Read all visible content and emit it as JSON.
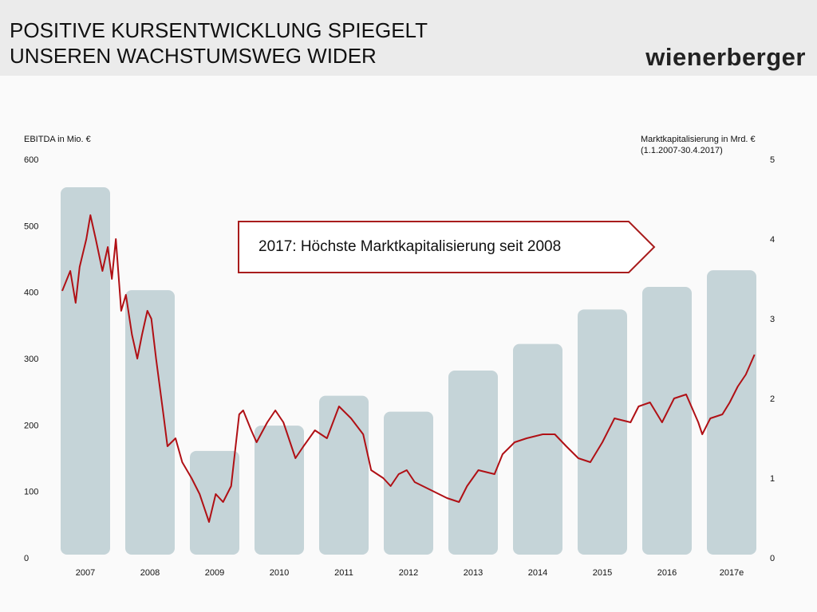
{
  "header": {
    "title_line1": "POSITIVE KURSENTWICKLUNG SPIEGELT",
    "title_line2": "UNSEREN WACHSTUMSWEG WIDER",
    "logo": "wienerberger"
  },
  "callout": "2017: Höchste Marktkapitalisierung seit 2008",
  "colors": {
    "bar": "#c5d4d8",
    "line": "#b01015",
    "callout_border": "#a81c1c"
  },
  "chart_data": {
    "type": "bar+line",
    "left_axis": {
      "label": "EBITDA in Mio. €",
      "range": [
        0,
        600
      ],
      "ticks": [
        "0",
        "100",
        "200",
        "300",
        "400",
        "500",
        "600"
      ]
    },
    "right_axis": {
      "label": "Marktkapitalisierung in Mrd. €",
      "sublabel": "(1.1.2007-30.4.2017)",
      "range": [
        0,
        5
      ],
      "ticks": [
        "0",
        "1",
        "2",
        "3",
        "4",
        "5"
      ]
    },
    "categories": [
      "2007",
      "2008",
      "2009",
      "2010",
      "2011",
      "2012",
      "2013",
      "2014",
      "2015",
      "2016",
      "2017e"
    ],
    "bars": {
      "name": "EBITDA",
      "values": [
        558,
        403,
        161,
        199,
        244,
        220,
        282,
        322,
        374,
        408,
        433
      ]
    },
    "line": {
      "name": "Marktkapitalisierung",
      "points": [
        [
          2007.0,
          3.35
        ],
        [
          2007.12,
          3.6
        ],
        [
          2007.2,
          3.2
        ],
        [
          2007.26,
          3.65
        ],
        [
          2007.36,
          4.0
        ],
        [
          2007.42,
          4.3
        ],
        [
          2007.5,
          4.0
        ],
        [
          2007.6,
          3.6
        ],
        [
          2007.68,
          3.9
        ],
        [
          2007.74,
          3.5
        ],
        [
          2007.8,
          4.0
        ],
        [
          2007.88,
          3.1
        ],
        [
          2007.95,
          3.3
        ],
        [
          2008.04,
          2.8
        ],
        [
          2008.12,
          2.5
        ],
        [
          2008.19,
          2.8
        ],
        [
          2008.27,
          3.1
        ],
        [
          2008.33,
          3.0
        ],
        [
          2008.4,
          2.5
        ],
        [
          2008.51,
          1.8
        ],
        [
          2008.57,
          1.4
        ],
        [
          2008.69,
          1.5
        ],
        [
          2008.79,
          1.2
        ],
        [
          2008.93,
          1.0
        ],
        [
          2009.05,
          0.8
        ],
        [
          2009.19,
          0.45
        ],
        [
          2009.29,
          0.8
        ],
        [
          2009.4,
          0.7
        ],
        [
          2009.52,
          0.9
        ],
        [
          2009.64,
          1.8
        ],
        [
          2009.7,
          1.85
        ],
        [
          2009.82,
          1.6
        ],
        [
          2009.9,
          1.45
        ],
        [
          2010.06,
          1.7
        ],
        [
          2010.18,
          1.85
        ],
        [
          2010.3,
          1.7
        ],
        [
          2010.48,
          1.25
        ],
        [
          2010.6,
          1.4
        ],
        [
          2010.77,
          1.6
        ],
        [
          2010.95,
          1.5
        ],
        [
          2011.13,
          1.9
        ],
        [
          2011.31,
          1.75
        ],
        [
          2011.49,
          1.55
        ],
        [
          2011.61,
          1.1
        ],
        [
          2011.79,
          1.0
        ],
        [
          2011.9,
          0.9
        ],
        [
          2012.02,
          1.05
        ],
        [
          2012.14,
          1.1
        ],
        [
          2012.26,
          0.95
        ],
        [
          2012.5,
          0.85
        ],
        [
          2012.74,
          0.75
        ],
        [
          2012.92,
          0.7
        ],
        [
          2013.04,
          0.9
        ],
        [
          2013.21,
          1.1
        ],
        [
          2013.45,
          1.05
        ],
        [
          2013.57,
          1.3
        ],
        [
          2013.75,
          1.45
        ],
        [
          2013.93,
          1.5
        ],
        [
          2014.17,
          1.55
        ],
        [
          2014.35,
          1.55
        ],
        [
          2014.52,
          1.4
        ],
        [
          2014.7,
          1.25
        ],
        [
          2014.88,
          1.2
        ],
        [
          2015.06,
          1.45
        ],
        [
          2015.24,
          1.75
        ],
        [
          2015.48,
          1.7
        ],
        [
          2015.6,
          1.9
        ],
        [
          2015.77,
          1.95
        ],
        [
          2015.95,
          1.7
        ],
        [
          2016.13,
          2.0
        ],
        [
          2016.31,
          2.05
        ],
        [
          2016.49,
          1.7
        ],
        [
          2016.55,
          1.55
        ],
        [
          2016.67,
          1.75
        ],
        [
          2016.85,
          1.8
        ],
        [
          2016.96,
          1.95
        ],
        [
          2017.08,
          2.15
        ],
        [
          2017.2,
          2.3
        ],
        [
          2017.33,
          2.55
        ]
      ]
    }
  }
}
